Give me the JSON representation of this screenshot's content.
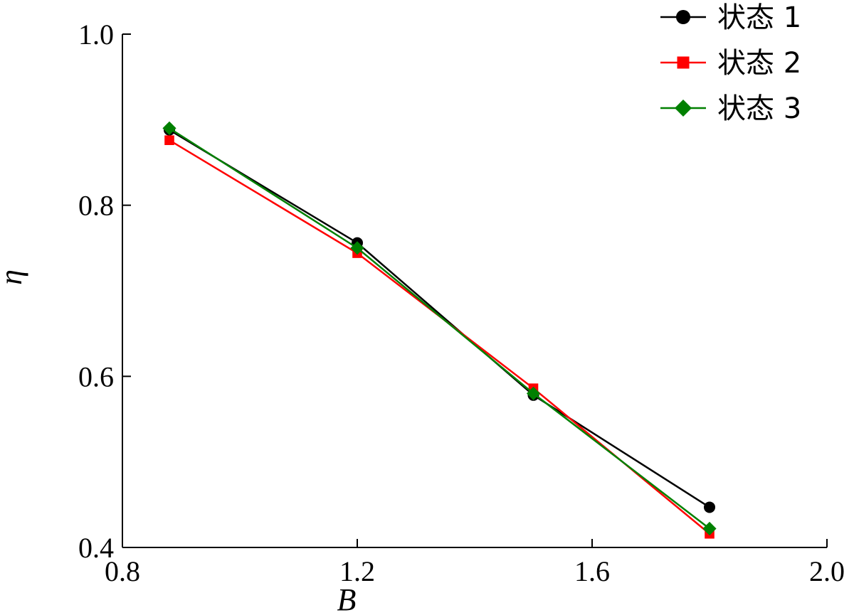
{
  "chart_data": {
    "type": "line",
    "xlabel": "B",
    "ylabel": "η",
    "xlim": [
      0.8,
      2.0
    ],
    "ylim": [
      0.4,
      1.0
    ],
    "xticks": [
      0.8,
      1.2,
      1.6,
      2.0
    ],
    "xtick_labels": [
      "0.8",
      "1.2",
      "1.6",
      "2.0"
    ],
    "yticks": [
      0.4,
      0.6,
      0.8,
      1.0
    ],
    "ytick_labels": [
      "0.4",
      "0.6",
      "0.8",
      "1.0"
    ],
    "grid": false,
    "legend_position": "top-right",
    "x": [
      0.88,
      1.2,
      1.5,
      1.8
    ],
    "series": [
      {
        "name": "状态 1",
        "values": [
          0.888,
          0.756,
          0.578,
          0.447
        ],
        "color": "#000000",
        "marker": "circle"
      },
      {
        "name": "状态 2",
        "values": [
          0.876,
          0.744,
          0.586,
          0.416
        ],
        "color": "#ff0000",
        "marker": "square"
      },
      {
        "name": "状态 3",
        "values": [
          0.89,
          0.75,
          0.58,
          0.422
        ],
        "color": "#008000",
        "marker": "diamond"
      }
    ]
  }
}
